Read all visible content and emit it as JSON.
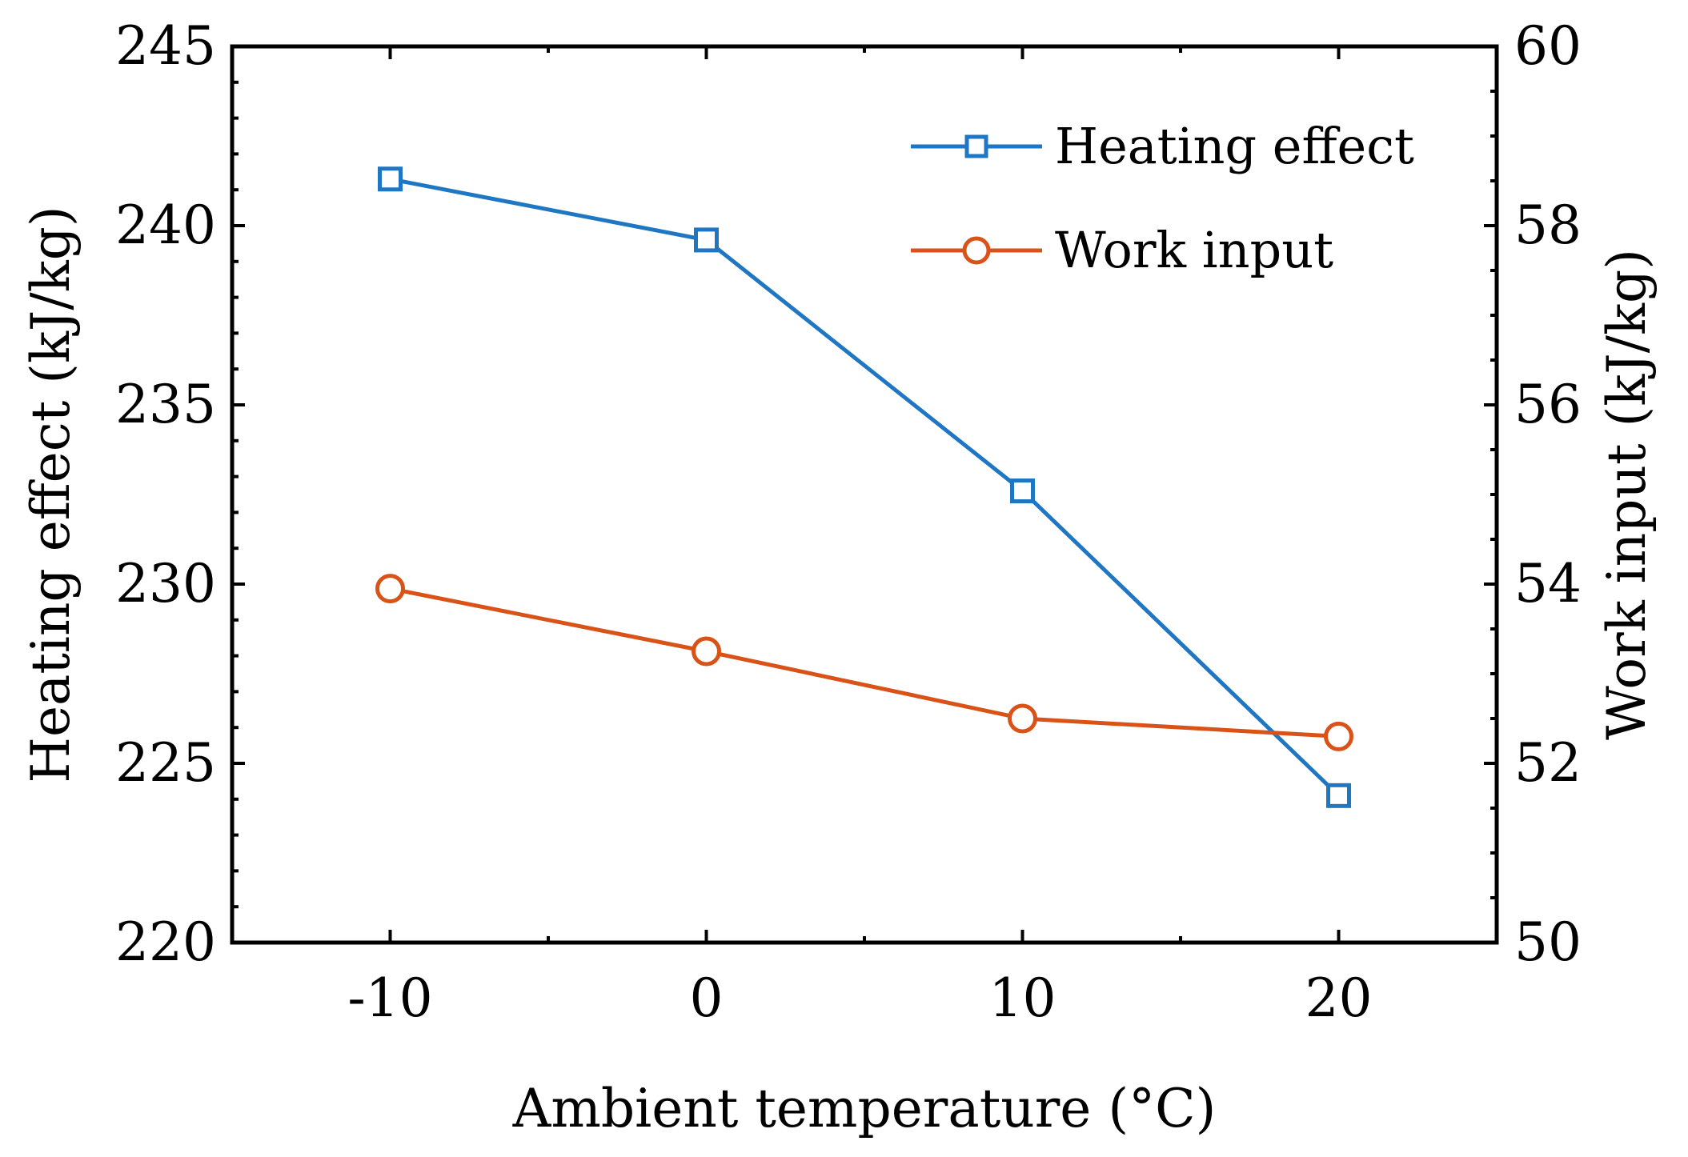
{
  "chart_data": {
    "type": "line",
    "x": [
      -10,
      0,
      10,
      20
    ],
    "xlim": [
      -15,
      25
    ],
    "xticks": [
      "-10",
      "0",
      "10",
      "20"
    ],
    "xlabel": "Ambient temperature (°C)",
    "ylabel_left": "Heating effect (kJ/kg)",
    "ylabel_right": "Work input (kJ/kg)",
    "ylim_left": [
      220,
      245
    ],
    "ylim_right": [
      50,
      60
    ],
    "yticks_left": [
      "220",
      "225",
      "230",
      "235",
      "240",
      "245"
    ],
    "yticks_right": [
      "50",
      "52",
      "54",
      "56",
      "58",
      "60"
    ],
    "legend_position": "top-right",
    "series": [
      {
        "name": "Heating effect",
        "axis": "left",
        "marker": "square",
        "color": "#1f77c4",
        "values": [
          241.3,
          239.6,
          232.6,
          224.1
        ]
      },
      {
        "name": "Work input",
        "axis": "right",
        "marker": "circle",
        "color": "#d95319",
        "values": [
          53.95,
          53.25,
          52.5,
          52.3
        ]
      }
    ]
  }
}
